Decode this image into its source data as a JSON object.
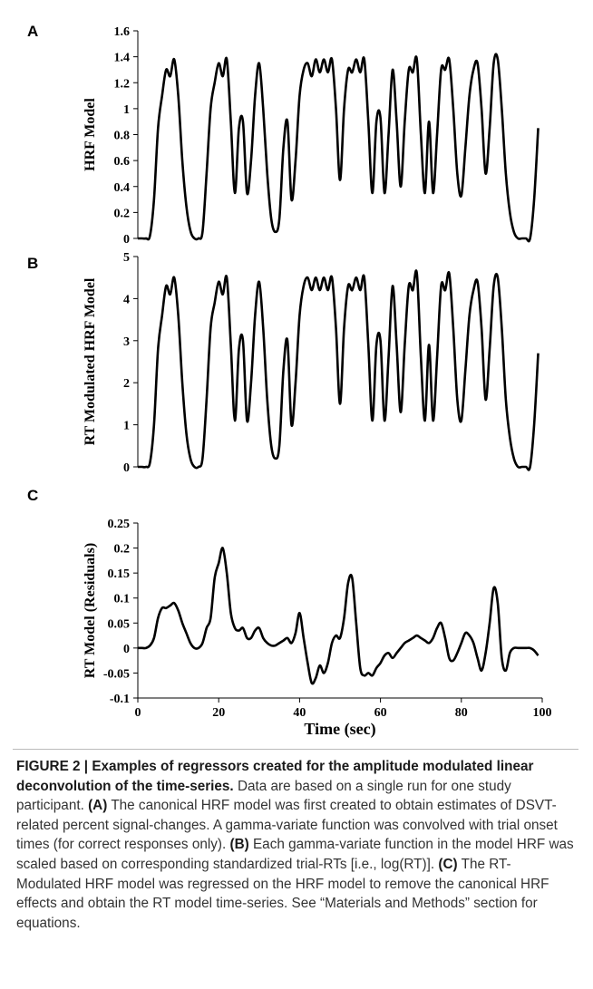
{
  "chart_data": [
    {
      "type": "line",
      "panel": "A",
      "ylabel": "HRF Model",
      "color": "#000000",
      "xlim": [
        0,
        100
      ],
      "ylim": [
        0,
        1.6
      ],
      "yticks": [
        0,
        0.2,
        0.4,
        0.6,
        0.8,
        1,
        1.2,
        1.4,
        1.6
      ],
      "x": [
        0,
        1,
        2,
        3,
        4,
        5,
        6,
        7,
        8,
        9,
        10,
        11,
        12,
        13,
        14,
        15,
        16,
        17,
        18,
        19,
        20,
        21,
        22,
        23,
        24,
        25,
        26,
        27,
        28,
        29,
        30,
        31,
        32,
        33,
        34,
        35,
        36,
        37,
        38,
        39,
        40,
        41,
        42,
        43,
        44,
        45,
        46,
        47,
        48,
        49,
        50,
        51,
        52,
        53,
        54,
        55,
        56,
        57,
        58,
        59,
        60,
        61,
        62,
        63,
        64,
        65,
        66,
        67,
        68,
        69,
        70,
        71,
        72,
        73,
        74,
        75,
        76,
        77,
        78,
        79,
        80,
        81,
        82,
        83,
        84,
        85,
        86,
        87,
        88,
        89,
        90,
        91,
        92,
        93,
        94,
        95,
        96,
        97,
        98,
        99
      ],
      "values": [
        0,
        0,
        0,
        0.02,
        0.3,
        0.85,
        1.1,
        1.3,
        1.25,
        1.38,
        1.1,
        0.6,
        0.25,
        0.06,
        0,
        0,
        0.05,
        0.5,
        1.0,
        1.2,
        1.35,
        1.25,
        1.38,
        0.9,
        0.35,
        0.85,
        0.9,
        0.35,
        0.6,
        1.1,
        1.35,
        1.0,
        0.5,
        0.15,
        0.05,
        0.15,
        0.7,
        0.9,
        0.3,
        0.6,
        1.1,
        1.3,
        1.35,
        1.25,
        1.38,
        1.28,
        1.38,
        1.28,
        1.38,
        1.0,
        0.45,
        1.0,
        1.3,
        1.28,
        1.38,
        1.28,
        1.38,
        0.9,
        0.35,
        0.9,
        0.93,
        0.35,
        0.8,
        1.3,
        0.9,
        0.4,
        0.9,
        1.3,
        1.28,
        1.38,
        0.8,
        0.35,
        0.9,
        0.35,
        0.8,
        1.3,
        1.3,
        1.38,
        1.0,
        0.5,
        0.33,
        0.7,
        1.1,
        1.3,
        1.35,
        1.0,
        0.5,
        0.85,
        1.35,
        1.38,
        1.0,
        0.5,
        0.2,
        0.05,
        0,
        0,
        0,
        0,
        0.3,
        0.85
      ]
    },
    {
      "type": "line",
      "panel": "B",
      "ylabel": "RT Modulated HRF Model",
      "color": "#000000",
      "xlim": [
        0,
        100
      ],
      "ylim": [
        0,
        5
      ],
      "yticks": [
        0,
        1,
        2,
        3,
        4,
        5
      ],
      "x": [
        0,
        1,
        2,
        3,
        4,
        5,
        6,
        7,
        8,
        9,
        10,
        11,
        12,
        13,
        14,
        15,
        16,
        17,
        18,
        19,
        20,
        21,
        22,
        23,
        24,
        25,
        26,
        27,
        28,
        29,
        30,
        31,
        32,
        33,
        34,
        35,
        36,
        37,
        38,
        39,
        40,
        41,
        42,
        43,
        44,
        45,
        46,
        47,
        48,
        49,
        50,
        51,
        52,
        53,
        54,
        55,
        56,
        57,
        58,
        59,
        60,
        61,
        62,
        63,
        64,
        65,
        66,
        67,
        68,
        69,
        70,
        71,
        72,
        73,
        74,
        75,
        76,
        77,
        78,
        79,
        80,
        81,
        82,
        83,
        84,
        85,
        86,
        87,
        88,
        89,
        90,
        91,
        92,
        93,
        94,
        95,
        96,
        97,
        98,
        99
      ],
      "values": [
        0,
        0,
        0,
        0.1,
        1.0,
        2.8,
        3.6,
        4.3,
        4.1,
        4.5,
        3.6,
        2.0,
        0.8,
        0.2,
        0,
        0,
        0.2,
        1.6,
        3.3,
        3.9,
        4.4,
        4.1,
        4.5,
        2.9,
        1.1,
        2.8,
        3.0,
        1.1,
        2.0,
        3.6,
        4.4,
        3.3,
        1.6,
        0.5,
        0.2,
        0.5,
        2.3,
        3.0,
        1.0,
        2.0,
        3.6,
        4.3,
        4.5,
        4.2,
        4.5,
        4.2,
        4.5,
        4.2,
        4.5,
        3.3,
        1.5,
        3.3,
        4.3,
        4.2,
        4.5,
        4.2,
        4.5,
        2.9,
        1.1,
        2.9,
        3.0,
        1.1,
        2.6,
        4.3,
        2.9,
        1.3,
        2.9,
        4.3,
        4.2,
        4.6,
        2.6,
        1.1,
        2.9,
        1.1,
        2.6,
        4.3,
        4.2,
        4.6,
        3.3,
        1.6,
        1.1,
        2.3,
        3.6,
        4.2,
        4.4,
        3.3,
        1.6,
        2.8,
        4.3,
        4.5,
        3.3,
        1.6,
        0.7,
        0.2,
        0,
        0,
        0,
        0,
        1.0,
        2.7
      ]
    },
    {
      "type": "line",
      "panel": "C",
      "ylabel": "RT Model (Residuals)",
      "xlabel": "Time (sec)",
      "color": "#000000",
      "xlim": [
        0,
        100
      ],
      "xticks": [
        0,
        20,
        40,
        60,
        80,
        100
      ],
      "ylim": [
        -0.1,
        0.25
      ],
      "yticks": [
        -0.1,
        -0.05,
        0,
        0.05,
        0.1,
        0.15,
        0.2,
        0.25
      ],
      "x": [
        0,
        1,
        2,
        3,
        4,
        5,
        6,
        7,
        8,
        9,
        10,
        11,
        12,
        13,
        14,
        15,
        16,
        17,
        18,
        19,
        20,
        21,
        22,
        23,
        24,
        25,
        26,
        27,
        28,
        29,
        30,
        31,
        32,
        33,
        34,
        35,
        36,
        37,
        38,
        39,
        40,
        41,
        42,
        43,
        44,
        45,
        46,
        47,
        48,
        49,
        50,
        51,
        52,
        53,
        54,
        55,
        56,
        57,
        58,
        59,
        60,
        61,
        62,
        63,
        64,
        65,
        66,
        67,
        68,
        69,
        70,
        71,
        72,
        73,
        74,
        75,
        76,
        77,
        78,
        79,
        80,
        81,
        82,
        83,
        84,
        85,
        86,
        87,
        88,
        89,
        90,
        91,
        92,
        93,
        94,
        95,
        96,
        97,
        98,
        99
      ],
      "values": [
        0,
        0,
        0,
        0.005,
        0.02,
        0.06,
        0.08,
        0.08,
        0.085,
        0.09,
        0.075,
        0.05,
        0.03,
        0.01,
        0,
        0,
        0.01,
        0.04,
        0.06,
        0.14,
        0.17,
        0.2,
        0.15,
        0.07,
        0.04,
        0.035,
        0.04,
        0.02,
        0.02,
        0.035,
        0.04,
        0.02,
        0.01,
        0.005,
        0.005,
        0.01,
        0.015,
        0.02,
        0.01,
        0.03,
        0.07,
        0.02,
        -0.03,
        -0.07,
        -0.06,
        -0.035,
        -0.05,
        -0.03,
        0.01,
        0.025,
        0.02,
        0.06,
        0.13,
        0.14,
        0.05,
        -0.04,
        -0.055,
        -0.05,
        -0.055,
        -0.04,
        -0.03,
        -0.015,
        -0.01,
        -0.02,
        -0.01,
        0,
        0.01,
        0.015,
        0.02,
        0.025,
        0.02,
        0.015,
        0.01,
        0.02,
        0.04,
        0.05,
        0.02,
        -0.02,
        -0.025,
        -0.01,
        0.01,
        0.03,
        0.025,
        0.01,
        -0.02,
        -0.045,
        -0.01,
        0.05,
        0.12,
        0.09,
        -0.02,
        -0.045,
        -0.01,
        0,
        0,
        0,
        0,
        0,
        -0.005,
        -0.015
      ]
    }
  ],
  "caption": {
    "parts": [
      "FIGURE 2 | Examples of regressors created for the amplitude modulated linear deconvolution of the time-series.",
      "Data are based on a single run for one study participant.",
      "(A)",
      "The canonical HRF model was first created to obtain estimates of DSVT-related percent signal-changes. A gamma-variate function was convolved with trial onset times (for correct responses only).",
      "(B)",
      "Each gamma-variate function in the model HRF was scaled based on corresponding standardized trial-RTs [i.e., log(RT)].",
      "(C)",
      "The RT-Modulated HRF model was regressed on the HRF model to remove the canonical HRF effects and obtain the RT model time-series. See “Materials and Methods” section for equations."
    ]
  }
}
